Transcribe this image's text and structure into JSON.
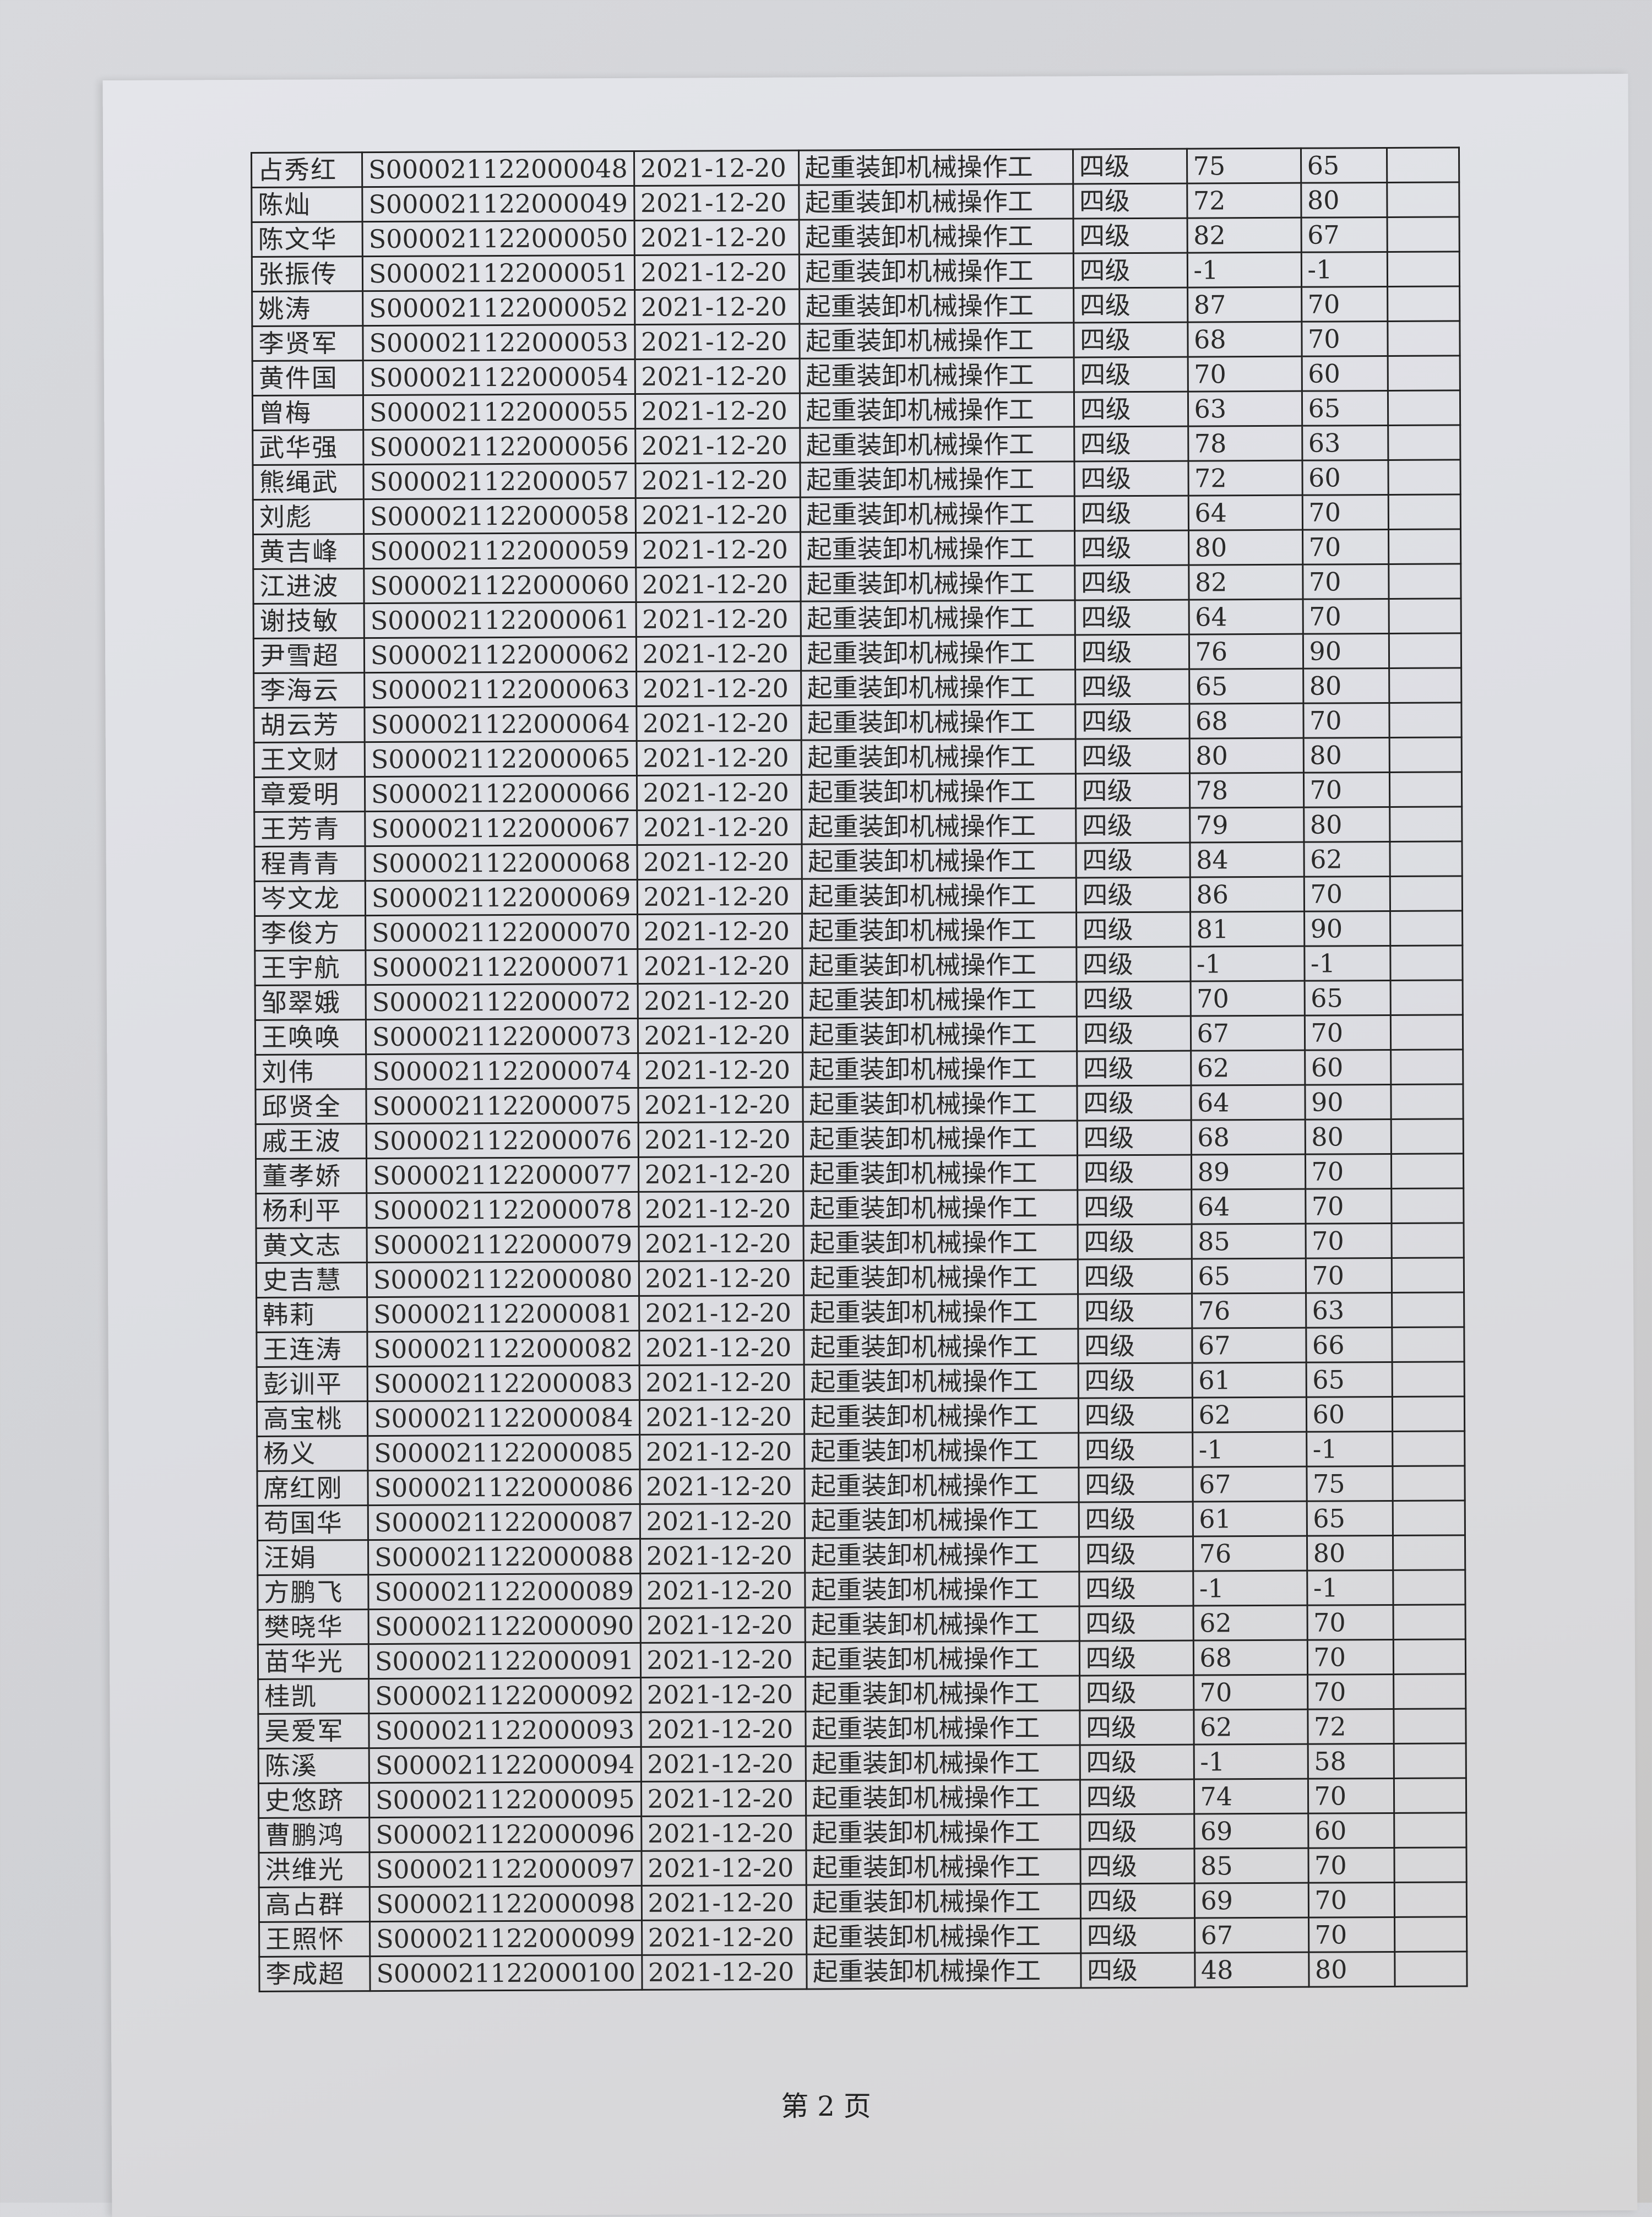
{
  "footer": "第 2 页",
  "rows": [
    [
      "占秀红",
      "S000021122000048",
      "2021-12-20",
      "起重装卸机械操作工",
      "四级",
      "75",
      "65",
      ""
    ],
    [
      "陈灿",
      "S000021122000049",
      "2021-12-20",
      "起重装卸机械操作工",
      "四级",
      "72",
      "80",
      ""
    ],
    [
      "陈文华",
      "S000021122000050",
      "2021-12-20",
      "起重装卸机械操作工",
      "四级",
      "82",
      "67",
      ""
    ],
    [
      "张振传",
      "S000021122000051",
      "2021-12-20",
      "起重装卸机械操作工",
      "四级",
      "-1",
      "-1",
      ""
    ],
    [
      "姚涛",
      "S000021122000052",
      "2021-12-20",
      "起重装卸机械操作工",
      "四级",
      "87",
      "70",
      ""
    ],
    [
      "李贤军",
      "S000021122000053",
      "2021-12-20",
      "起重装卸机械操作工",
      "四级",
      "68",
      "70",
      ""
    ],
    [
      "黄件国",
      "S000021122000054",
      "2021-12-20",
      "起重装卸机械操作工",
      "四级",
      "70",
      "60",
      ""
    ],
    [
      "曾梅",
      "S000021122000055",
      "2021-12-20",
      "起重装卸机械操作工",
      "四级",
      "63",
      "65",
      ""
    ],
    [
      "武华强",
      "S000021122000056",
      "2021-12-20",
      "起重装卸机械操作工",
      "四级",
      "78",
      "63",
      ""
    ],
    [
      "熊绳武",
      "S000021122000057",
      "2021-12-20",
      "起重装卸机械操作工",
      "四级",
      "72",
      "60",
      ""
    ],
    [
      "刘彪",
      "S000021122000058",
      "2021-12-20",
      "起重装卸机械操作工",
      "四级",
      "64",
      "70",
      ""
    ],
    [
      "黄吉峰",
      "S000021122000059",
      "2021-12-20",
      "起重装卸机械操作工",
      "四级",
      "80",
      "70",
      ""
    ],
    [
      "江进波",
      "S000021122000060",
      "2021-12-20",
      "起重装卸机械操作工",
      "四级",
      "82",
      "70",
      ""
    ],
    [
      "谢技敏",
      "S000021122000061",
      "2021-12-20",
      "起重装卸机械操作工",
      "四级",
      "64",
      "70",
      ""
    ],
    [
      "尹雪超",
      "S000021122000062",
      "2021-12-20",
      "起重装卸机械操作工",
      "四级",
      "76",
      "90",
      ""
    ],
    [
      "李海云",
      "S000021122000063",
      "2021-12-20",
      "起重装卸机械操作工",
      "四级",
      "65",
      "80",
      ""
    ],
    [
      "胡云芳",
      "S000021122000064",
      "2021-12-20",
      "起重装卸机械操作工",
      "四级",
      "68",
      "70",
      ""
    ],
    [
      "王文财",
      "S000021122000065",
      "2021-12-20",
      "起重装卸机械操作工",
      "四级",
      "80",
      "80",
      ""
    ],
    [
      "章爱明",
      "S000021122000066",
      "2021-12-20",
      "起重装卸机械操作工",
      "四级",
      "78",
      "70",
      ""
    ],
    [
      "王芳青",
      "S000021122000067",
      "2021-12-20",
      "起重装卸机械操作工",
      "四级",
      "79",
      "80",
      ""
    ],
    [
      "程青青",
      "S000021122000068",
      "2021-12-20",
      "起重装卸机械操作工",
      "四级",
      "84",
      "62",
      ""
    ],
    [
      "岑文龙",
      "S000021122000069",
      "2021-12-20",
      "起重装卸机械操作工",
      "四级",
      "86",
      "70",
      ""
    ],
    [
      "李俊方",
      "S000021122000070",
      "2021-12-20",
      "起重装卸机械操作工",
      "四级",
      "81",
      "90",
      ""
    ],
    [
      "王宇航",
      "S000021122000071",
      "2021-12-20",
      "起重装卸机械操作工",
      "四级",
      "-1",
      "-1",
      ""
    ],
    [
      "邹翠娥",
      "S000021122000072",
      "2021-12-20",
      "起重装卸机械操作工",
      "四级",
      "70",
      "65",
      ""
    ],
    [
      "王唤唤",
      "S000021122000073",
      "2021-12-20",
      "起重装卸机械操作工",
      "四级",
      "67",
      "70",
      ""
    ],
    [
      "刘伟",
      "S000021122000074",
      "2021-12-20",
      "起重装卸机械操作工",
      "四级",
      "62",
      "60",
      ""
    ],
    [
      "邱贤全",
      "S000021122000075",
      "2021-12-20",
      "起重装卸机械操作工",
      "四级",
      "64",
      "90",
      ""
    ],
    [
      "戚王波",
      "S000021122000076",
      "2021-12-20",
      "起重装卸机械操作工",
      "四级",
      "68",
      "80",
      ""
    ],
    [
      "董孝娇",
      "S000021122000077",
      "2021-12-20",
      "起重装卸机械操作工",
      "四级",
      "89",
      "70",
      ""
    ],
    [
      "杨利平",
      "S000021122000078",
      "2021-12-20",
      "起重装卸机械操作工",
      "四级",
      "64",
      "70",
      ""
    ],
    [
      "黄文志",
      "S000021122000079",
      "2021-12-20",
      "起重装卸机械操作工",
      "四级",
      "85",
      "70",
      ""
    ],
    [
      "史吉慧",
      "S000021122000080",
      "2021-12-20",
      "起重装卸机械操作工",
      "四级",
      "65",
      "70",
      ""
    ],
    [
      "韩莉",
      "S000021122000081",
      "2021-12-20",
      "起重装卸机械操作工",
      "四级",
      "76",
      "63",
      ""
    ],
    [
      "王连涛",
      "S000021122000082",
      "2021-12-20",
      "起重装卸机械操作工",
      "四级",
      "67",
      "66",
      ""
    ],
    [
      "彭训平",
      "S000021122000083",
      "2021-12-20",
      "起重装卸机械操作工",
      "四级",
      "61",
      "65",
      ""
    ],
    [
      "高宝桃",
      "S000021122000084",
      "2021-12-20",
      "起重装卸机械操作工",
      "四级",
      "62",
      "60",
      ""
    ],
    [
      "杨义",
      "S000021122000085",
      "2021-12-20",
      "起重装卸机械操作工",
      "四级",
      "-1",
      "-1",
      ""
    ],
    [
      "席红刚",
      "S000021122000086",
      "2021-12-20",
      "起重装卸机械操作工",
      "四级",
      "67",
      "75",
      ""
    ],
    [
      "苟国华",
      "S000021122000087",
      "2021-12-20",
      "起重装卸机械操作工",
      "四级",
      "61",
      "65",
      ""
    ],
    [
      "汪娟",
      "S000021122000088",
      "2021-12-20",
      "起重装卸机械操作工",
      "四级",
      "76",
      "80",
      ""
    ],
    [
      "方鹏飞",
      "S000021122000089",
      "2021-12-20",
      "起重装卸机械操作工",
      "四级",
      "-1",
      "-1",
      ""
    ],
    [
      "樊晓华",
      "S000021122000090",
      "2021-12-20",
      "起重装卸机械操作工",
      "四级",
      "62",
      "70",
      ""
    ],
    [
      "苗华光",
      "S000021122000091",
      "2021-12-20",
      "起重装卸机械操作工",
      "四级",
      "68",
      "70",
      ""
    ],
    [
      "桂凯",
      "S000021122000092",
      "2021-12-20",
      "起重装卸机械操作工",
      "四级",
      "70",
      "70",
      ""
    ],
    [
      "吴爱军",
      "S000021122000093",
      "2021-12-20",
      "起重装卸机械操作工",
      "四级",
      "62",
      "72",
      ""
    ],
    [
      "陈溪",
      "S000021122000094",
      "2021-12-20",
      "起重装卸机械操作工",
      "四级",
      "-1",
      "58",
      ""
    ],
    [
      "史悠跻",
      "S000021122000095",
      "2021-12-20",
      "起重装卸机械操作工",
      "四级",
      "74",
      "70",
      ""
    ],
    [
      "曹鹏鸿",
      "S000021122000096",
      "2021-12-20",
      "起重装卸机械操作工",
      "四级",
      "69",
      "60",
      ""
    ],
    [
      "洪维光",
      "S000021122000097",
      "2021-12-20",
      "起重装卸机械操作工",
      "四级",
      "85",
      "70",
      ""
    ],
    [
      "高占群",
      "S000021122000098",
      "2021-12-20",
      "起重装卸机械操作工",
      "四级",
      "69",
      "70",
      ""
    ],
    [
      "王照怀",
      "S000021122000099",
      "2021-12-20",
      "起重装卸机械操作工",
      "四级",
      "67",
      "70",
      ""
    ],
    [
      "李成超",
      "S000021122000100",
      "2021-12-20",
      "起重装卸机械操作工",
      "四级",
      "48",
      "80",
      ""
    ]
  ]
}
